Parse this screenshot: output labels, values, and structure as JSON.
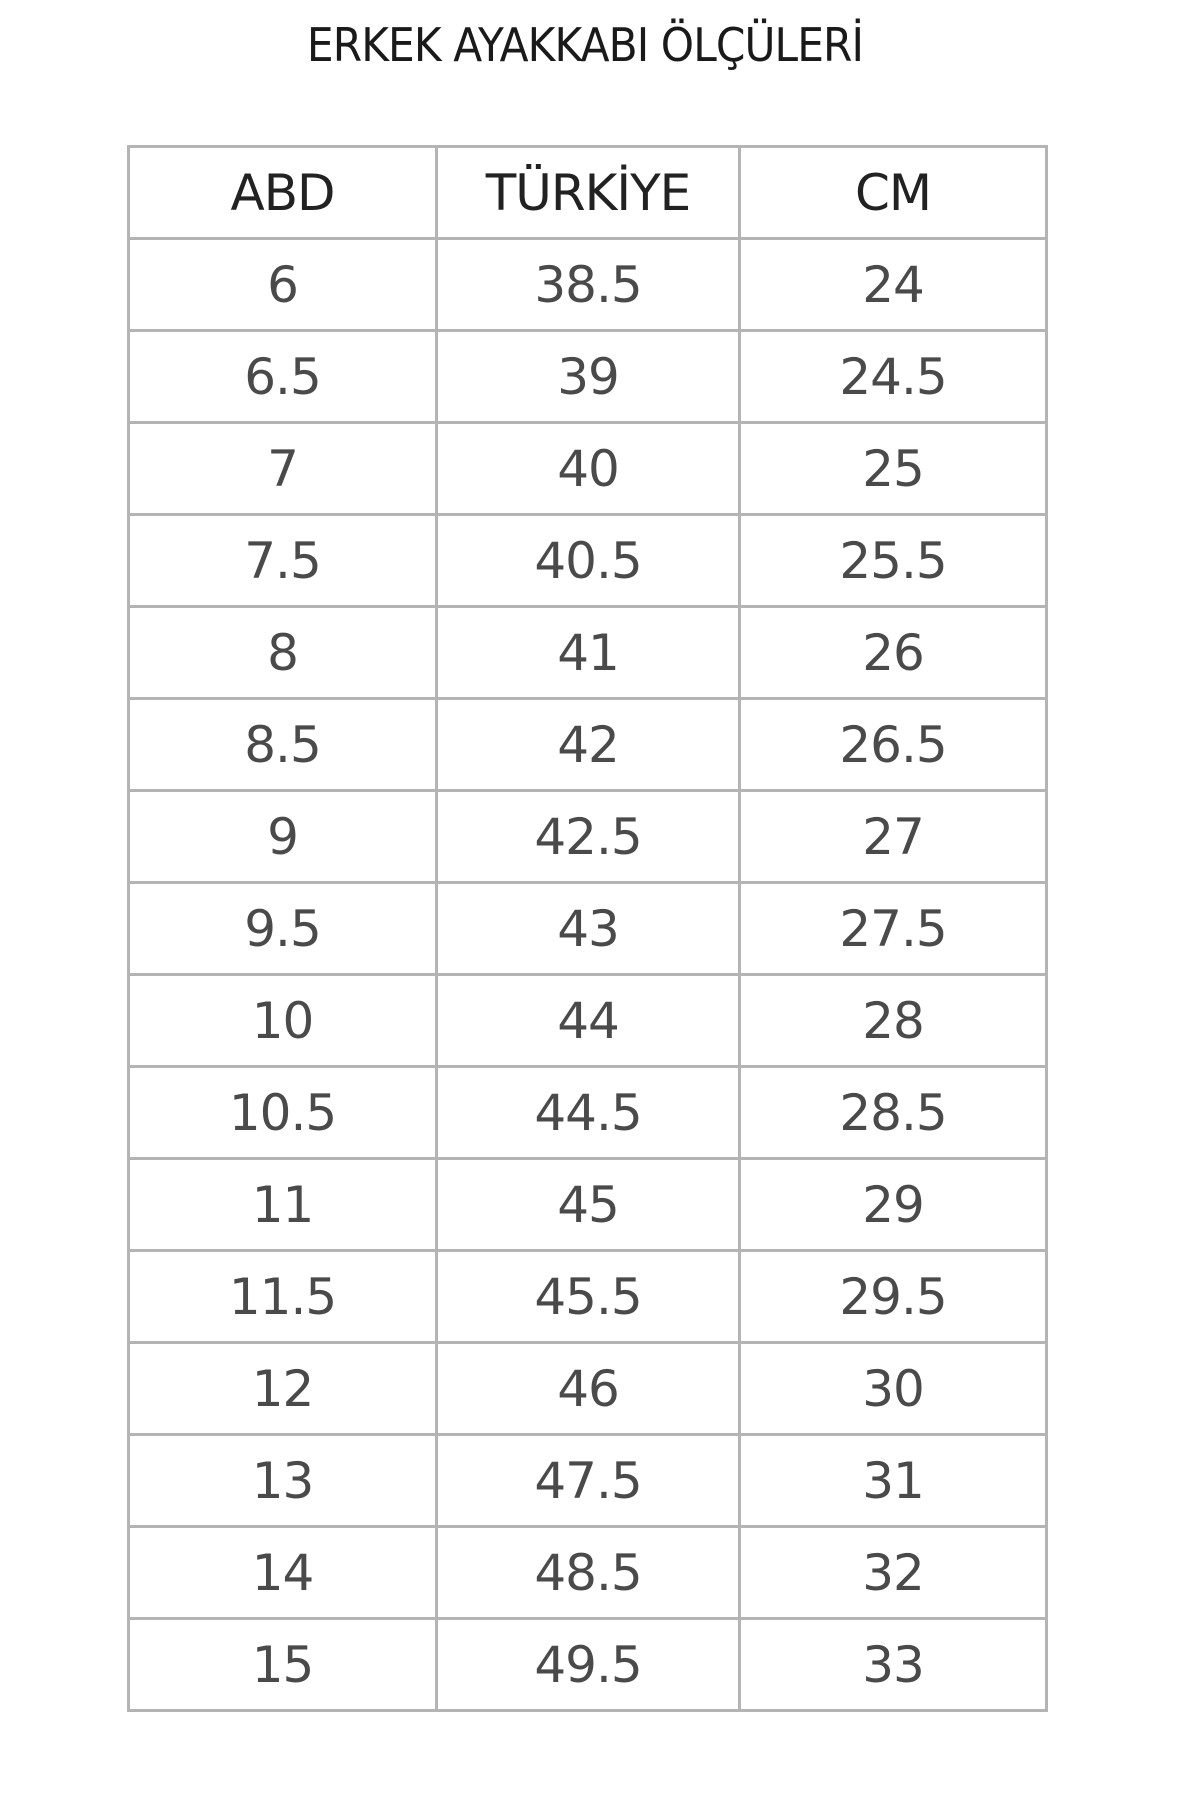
{
  "title": "ERKEK AYAKKABI ÖLÇÜLERİ",
  "table": {
    "headers": [
      "ABD",
      "TÜRKİYE",
      "CM"
    ],
    "rows": [
      [
        "6",
        "38.5",
        "24"
      ],
      [
        "6.5",
        "39",
        "24.5"
      ],
      [
        "7",
        "40",
        "25"
      ],
      [
        "7.5",
        "40.5",
        "25.5"
      ],
      [
        "8",
        "41",
        "26"
      ],
      [
        "8.5",
        "42",
        "26.5"
      ],
      [
        "9",
        "42.5",
        "27"
      ],
      [
        "9.5",
        "43",
        "27.5"
      ],
      [
        "10",
        "44",
        "28"
      ],
      [
        "10.5",
        "44.5",
        "28.5"
      ],
      [
        "11",
        "45",
        "29"
      ],
      [
        "11.5",
        "45.5",
        "29.5"
      ],
      [
        "12",
        "46",
        "30"
      ],
      [
        "13",
        "47.5",
        "31"
      ],
      [
        "14",
        "48.5",
        "32"
      ],
      [
        "15",
        "49.5",
        "33"
      ]
    ]
  }
}
